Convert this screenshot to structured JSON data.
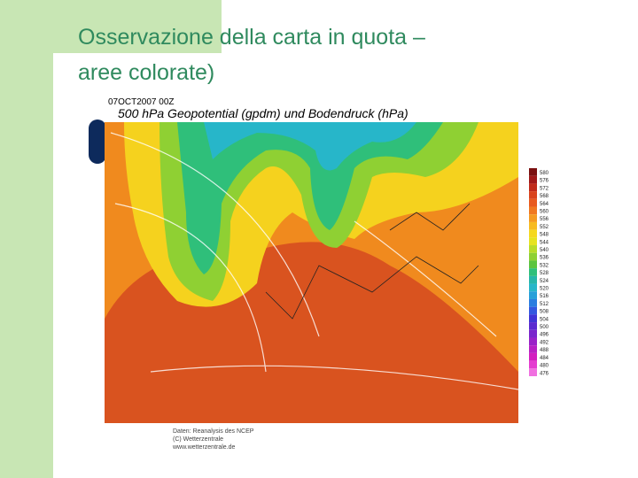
{
  "slide": {
    "title_lines": [
      "Osservazione della carta in quota –",
      "aree colorate)"
    ]
  },
  "map": {
    "date": "07OCT2007  00Z",
    "header": "500 hPa Geopotential (gpdm) und Bodendruck (hPa)",
    "credits": [
      "Daten: Reanalysis des NCEP",
      "(C) Wetterzentrale",
      "www.wetterzentrale.de"
    ],
    "legend": [
      "580",
      "576",
      "572",
      "568",
      "564",
      "560",
      "556",
      "552",
      "548",
      "544",
      "540",
      "536",
      "532",
      "528",
      "524",
      "520",
      "516",
      "512",
      "508",
      "504",
      "500",
      "496",
      "492",
      "488",
      "484",
      "480",
      "476"
    ]
  }
}
